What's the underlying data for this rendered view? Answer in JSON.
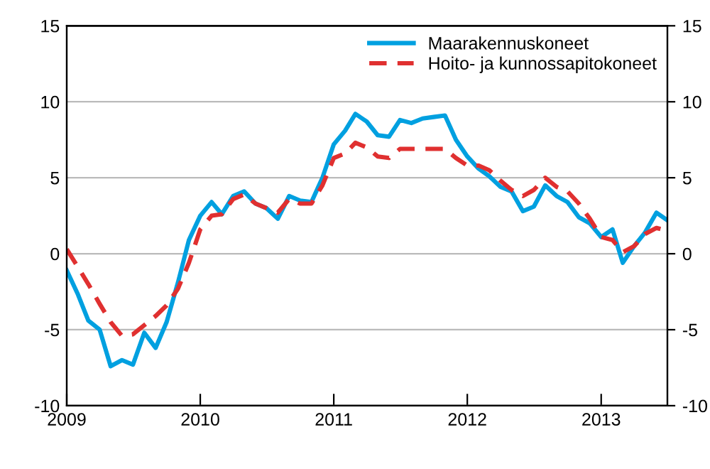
{
  "chart_data": {
    "type": "line",
    "x": [
      "2009-01",
      "2009-02",
      "2009-03",
      "2009-04",
      "2009-05",
      "2009-06",
      "2009-07",
      "2009-08",
      "2009-09",
      "2009-10",
      "2009-11",
      "2009-12",
      "2010-01",
      "2010-02",
      "2010-03",
      "2010-04",
      "2010-05",
      "2010-06",
      "2010-07",
      "2010-08",
      "2010-09",
      "2010-10",
      "2010-11",
      "2010-12",
      "2011-01",
      "2011-02",
      "2011-03",
      "2011-04",
      "2011-05",
      "2011-06",
      "2011-07",
      "2011-08",
      "2011-09",
      "2011-10",
      "2011-11",
      "2011-12",
      "2012-01",
      "2012-02",
      "2012-03",
      "2012-04",
      "2012-05",
      "2012-06",
      "2012-07",
      "2012-08",
      "2012-09",
      "2012-10",
      "2012-11",
      "2012-12",
      "2013-01",
      "2013-02",
      "2013-03",
      "2013-04",
      "2013-05",
      "2013-06",
      "2013-07"
    ],
    "series": [
      {
        "name": "Maarakennuskoneet",
        "color": "#00a0e0",
        "line_style": "solid",
        "values": [
          -1.1,
          -2.7,
          -4.4,
          -5.0,
          -7.4,
          -7.0,
          -7.3,
          -5.2,
          -6.2,
          -4.5,
          -1.9,
          0.9,
          2.5,
          3.4,
          2.6,
          3.8,
          4.1,
          3.3,
          3.0,
          2.3,
          3.8,
          3.5,
          3.4,
          5.0,
          7.2,
          8.1,
          9.2,
          8.7,
          7.8,
          7.7,
          8.8,
          8.6,
          8.9,
          9.0,
          9.1,
          7.5,
          6.4,
          5.6,
          5.1,
          4.4,
          4.1,
          2.8,
          3.1,
          4.5,
          3.8,
          3.4,
          2.4,
          2.0,
          1.1,
          1.6,
          -0.6,
          0.5,
          1.4,
          2.7,
          2.2
        ]
      },
      {
        "name": "Hoito- ja kunnossapitokoneet",
        "color": "#e03030",
        "line_style": "dashed",
        "values": [
          0.3,
          -0.9,
          -2.0,
          -3.3,
          -4.5,
          -5.4,
          -5.3,
          -4.7,
          -4.1,
          -3.4,
          -2.3,
          -0.6,
          1.6,
          2.5,
          2.6,
          3.6,
          3.9,
          3.3,
          3.0,
          2.7,
          3.6,
          3.3,
          3.3,
          4.5,
          6.3,
          6.6,
          7.3,
          7.0,
          6.4,
          6.3,
          6.9,
          6.9,
          6.9,
          6.9,
          6.9,
          6.3,
          5.8,
          5.8,
          5.5,
          4.8,
          4.2,
          3.8,
          4.2,
          5.0,
          4.4,
          4.1,
          3.3,
          2.3,
          1.1,
          0.9,
          0.1,
          0.5,
          1.3,
          1.7,
          1.5
        ]
      }
    ],
    "xlim": [
      "2009-01",
      "2013-07"
    ],
    "xticks": [
      {
        "value": "2009-01",
        "label": "2009"
      },
      {
        "value": "2010-01",
        "label": "2010"
      },
      {
        "value": "2011-01",
        "label": "2011"
      },
      {
        "value": "2012-01",
        "label": "2012"
      },
      {
        "value": "2013-01",
        "label": "2013"
      }
    ],
    "ylim": [
      -10,
      15
    ],
    "yticks": [
      -10,
      -5,
      0,
      5,
      10,
      15
    ],
    "y2lim": [
      -10,
      15
    ],
    "y2ticks": [
      -10,
      -5,
      0,
      5,
      10,
      15
    ],
    "grid": "y",
    "legend": "top right"
  }
}
